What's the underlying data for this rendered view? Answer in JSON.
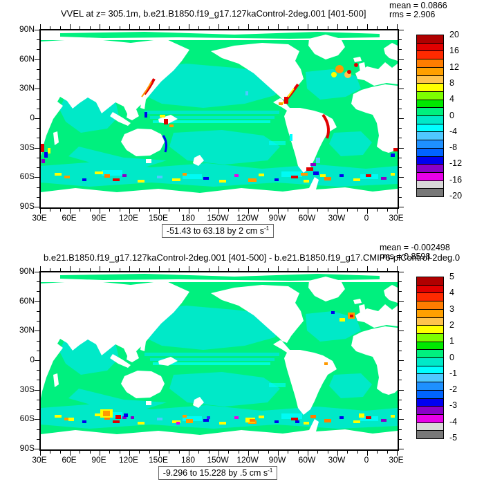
{
  "figure": {
    "panels": [
      {
        "title": "VVEL at z= 305.1m, b.e21.B1850.f19_g17.127kaControl-2deg.001 [401-500]",
        "mean": "mean = 0.0866",
        "rms": "rms = 2.906",
        "caption_text": "-51.43 to 63.18 by 2 cm s",
        "caption_sup": "-1",
        "colorbar_labels": [
          "20",
          "16",
          "12",
          "8",
          "4",
          "0",
          "-4",
          "-8",
          "-12",
          "-16",
          "-20"
        ],
        "y_tick_labels": [
          "90N",
          "60N",
          "30N",
          "0",
          "30S",
          "60S",
          "90S"
        ],
        "x_tick_labels": [
          "30E",
          "60E",
          "90E",
          "120E",
          "150E",
          "180",
          "150W",
          "120W",
          "90W",
          "60W",
          "30W",
          "0",
          "30E"
        ]
      },
      {
        "title": "b.e21.B1850.f19_g17.127kaControl-2deg.001 [401-500] - b.e21.B1850.f19_g17.CMIP6-piControl-2deg.0",
        "mean": "mean = -0.002498",
        "rms": "rms = 0.8598",
        "caption_text": "-9.296 to 15.228 by .5 cm s",
        "caption_sup": "-1",
        "colorbar_labels": [
          "5",
          "4",
          "3",
          "2",
          "1",
          "0",
          "-1",
          "-2",
          "-3",
          "-4",
          "-5"
        ],
        "y_tick_labels": [
          "90N",
          "60N",
          "30N",
          "0",
          "30S",
          "60S",
          "90S"
        ],
        "x_tick_labels": [
          "30E",
          "60E",
          "90E",
          "120E",
          "150E",
          "180",
          "150W",
          "120W",
          "90W",
          "60W",
          "30W",
          "0",
          "30E"
        ]
      }
    ],
    "colorbar_colors": [
      "#b00000",
      "#e10000",
      "#ff2a00",
      "#ff7d00",
      "#ffa000",
      "#ffc34e",
      "#ffff00",
      "#7dff00",
      "#00e800",
      "#00f07e",
      "#00e9c8",
      "#00ffff",
      "#4fc8ff",
      "#1e90ff",
      "#0064ff",
      "#0000f0",
      "#8a00c8",
      "#e800e8",
      "#d8d8d8",
      "#787878"
    ]
  },
  "chart_data": [
    {
      "type": "heatmap",
      "subtype": "filled-contour world map, cylindrical equidistant, lon 30E around to 30E, lat 90S-90N; land masked white",
      "title": "VVEL at z= 305.1m, b.e21.B1850.f19_g17.127kaControl-2deg.001 [401-500]",
      "variable": "VVEL (ocean vertical velocity)",
      "mean": 0.0866,
      "rms": 2.906,
      "data_min": -51.43,
      "data_max": 63.18,
      "contour_interval": 2,
      "units": "cm s-1",
      "colorbar_levels": [
        20,
        16,
        12,
        8,
        4,
        0,
        -4,
        -8,
        -12,
        -16,
        -20
      ],
      "x_ticks": [
        "30E",
        "60E",
        "90E",
        "120E",
        "150E",
        "180",
        "150W",
        "120W",
        "90W",
        "60W",
        "30W",
        "0",
        "30E"
      ],
      "y_ticks": [
        "90N",
        "60N",
        "30N",
        "0",
        "30S",
        "60S",
        "90S"
      ],
      "dominant_values": "ocean interior between -2 and 2 (green/turquoise); strong +/- extremes along western boundary currents, equatorial Indonesia and the Southern Ocean"
    },
    {
      "type": "heatmap",
      "subtype": "filled-contour world map difference plot, same projection, land masked white",
      "title": "b.e21.B1850.f19_g17.127kaControl-2deg.001 [401-500] - b.e21.B1850.f19_g17.CMIP6-piControl-2deg.0",
      "variable": "VVEL difference",
      "mean": -0.002498,
      "rms": 0.8598,
      "data_min": -9.296,
      "data_max": 15.228,
      "contour_interval": 0.5,
      "units": "cm s-1",
      "colorbar_levels": [
        5,
        4,
        3,
        2,
        1,
        0,
        -1,
        -2,
        -3,
        -4,
        -5
      ],
      "x_ticks": [
        "30E",
        "60E",
        "90E",
        "120E",
        "150E",
        "180",
        "150W",
        "120W",
        "90W",
        "60W",
        "30W",
        "0",
        "30E"
      ],
      "y_ticks": [
        "90N",
        "60N",
        "30N",
        "0",
        "30S",
        "60S",
        "90S"
      ],
      "dominant_values": "differences mostly between -1 and 1 (green/turquoise); scattered larger differences in Southern Ocean and subpolar North Atlantic"
    }
  ]
}
